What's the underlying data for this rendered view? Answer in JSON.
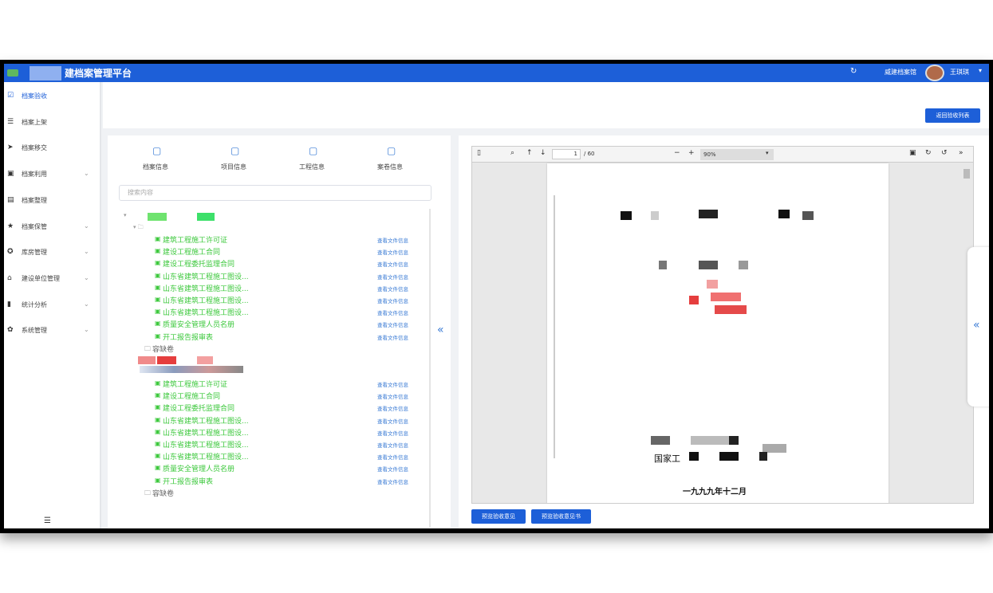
{
  "header": {
    "title": "建档案管理平台",
    "org": "威建档案馆",
    "user": "王琪琪"
  },
  "sidebar": {
    "items": [
      "档案验收",
      "档案上架",
      "档案移交",
      "档案利用",
      "档案整理",
      "档案保管",
      "库房管理",
      "建设单位管理",
      "统计分析",
      "系统管理"
    ]
  },
  "toolbar": {
    "back_button": "返回验收列表"
  },
  "tabs": [
    "档案信息",
    "项目信息",
    "工程信息",
    "案卷信息"
  ],
  "search": {
    "placeholder": "搜索内容"
  },
  "tree": {
    "link_label": "查看文件信息",
    "groups": [
      {
        "items": [
          "建筑工程施工许可证",
          "建设工程施工合同",
          "建设工程委托监理合同",
          "山东省建筑工程施工图设...",
          "山东省建筑工程施工图设...",
          "山东省建筑工程施工图设...",
          "山东省建筑工程施工图设...",
          "质量安全管理人员名册",
          "开工报告报审表"
        ],
        "missing_folder": "容缺卷"
      },
      {
        "items": [
          "建筑工程施工许可证",
          "建设工程施工合同",
          "建设工程委托监理合同",
          "山东省建筑工程施工图设...",
          "山东省建筑工程施工图设...",
          "山东省建筑工程施工图设...",
          "山东省建筑工程施工图设...",
          "质量安全管理人员名册",
          "开工报告报审表"
        ],
        "missing_folder": "容缺卷"
      }
    ]
  },
  "viewer": {
    "page": "1",
    "page_count": "/ 60",
    "zoom": "90%",
    "doc_text": "国家工",
    "doc_date": "一九九九年十二月"
  },
  "actions": [
    "预览验收意见",
    "预览验收意见书"
  ]
}
